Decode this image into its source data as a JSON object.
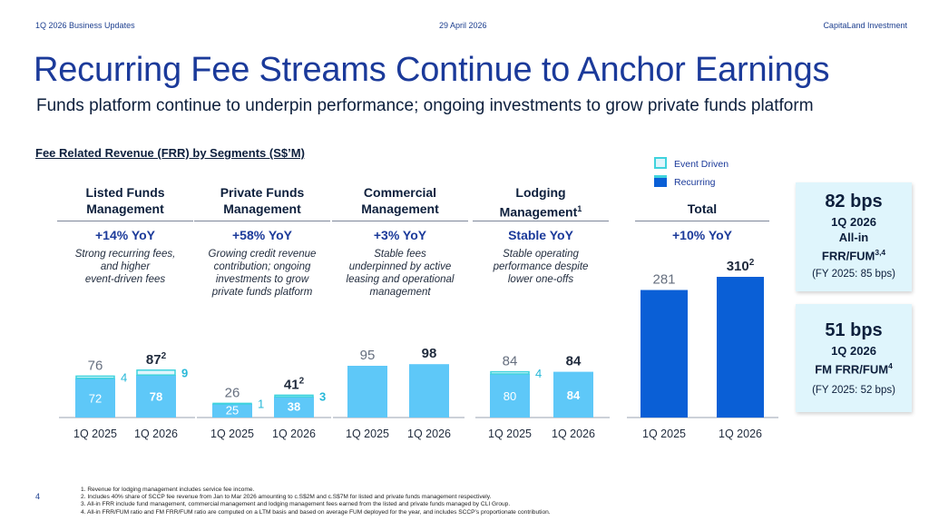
{
  "header": {
    "left": "1Q 2026 Business Updates",
    "center": "29 April 2026",
    "right": "CapitaLand Investment"
  },
  "title": "Recurring Fee Streams Continue to Anchor Earnings",
  "subtitle": "Funds platform continue to underpin performance; ongoing investments to grow private funds platform",
  "chart_title": "Fee Related Revenue (FRR) by Segments (S$’M)",
  "legend": {
    "event": "Event Driven",
    "recurring": "Recurring"
  },
  "segments": [
    {
      "name1": "Listed Funds",
      "name2": "Management",
      "sup": "",
      "yoy": "+14% YoY",
      "desc": [
        "Strong recurring fees,",
        "and higher",
        "event-driven fees"
      ]
    },
    {
      "name1": "Private Funds",
      "name2": "Management",
      "sup": "",
      "yoy": "+58% YoY",
      "desc": [
        "Growing credit revenue",
        "contribution; ongoing",
        "investments to grow",
        "private funds platform"
      ]
    },
    {
      "name1": "Commercial",
      "name2": "Management",
      "sup": "",
      "yoy": "+3% YoY",
      "desc": [
        "Stable fees",
        "underpinned by active",
        "leasing and operational",
        "management"
      ]
    },
    {
      "name1": "Lodging",
      "name2": "Management",
      "sup": "1",
      "yoy": "Stable YoY",
      "desc": [
        "Stable operating",
        "performance despite",
        "lower one-offs"
      ]
    },
    {
      "name1": "Total",
      "name2": "",
      "sup": "",
      "yoy": "+10% YoY",
      "desc": []
    }
  ],
  "chart_data": {
    "type": "bar",
    "stacked": true,
    "categories": [
      "1Q 2025",
      "1Q 2026"
    ],
    "groups": [
      {
        "segment": "Listed Funds Management",
        "recurring": [
          72,
          78
        ],
        "event": [
          4,
          9
        ],
        "totals": [
          "76",
          "87"
        ],
        "total_sup": [
          "",
          "2"
        ]
      },
      {
        "segment": "Private Funds Management",
        "recurring": [
          25,
          38
        ],
        "event": [
          1,
          3
        ],
        "totals": [
          "26",
          "41"
        ],
        "total_sup": [
          "",
          "2"
        ]
      },
      {
        "segment": "Commercial Management",
        "recurring": [
          95,
          98
        ],
        "event": [
          0,
          0
        ],
        "totals": [
          "95",
          "98"
        ],
        "total_sup": [
          "",
          ""
        ]
      },
      {
        "segment": "Lodging Management",
        "recurring": [
          80,
          84
        ],
        "event": [
          4,
          0
        ],
        "totals": [
          "84",
          "84"
        ],
        "total_sup": [
          "",
          ""
        ]
      },
      {
        "segment": "Total",
        "recurring": [
          281,
          310
        ],
        "event": [
          0,
          0
        ],
        "totals": [
          "281",
          "310"
        ],
        "total_sup": [
          "",
          "2"
        ]
      }
    ],
    "series": [
      {
        "name": "Recurring",
        "color": "#5ec8f8"
      },
      {
        "name": "Event Driven",
        "color": "#dff5fc"
      }
    ]
  },
  "colors": {
    "recurring": "#5ec8f8",
    "event_fill": "#dff5fc",
    "event_stroke": "#3fd3dd",
    "total": "#0a5fd6",
    "navy": "#1b3a9a"
  },
  "cards": [
    {
      "big": "82 bps",
      "line1": "1Q 2026",
      "line2": "All-in",
      "line3": "FRR/FUM",
      "sup": "3,4",
      "small": "(FY 2025: 85 bps)"
    },
    {
      "big": "51 bps",
      "line1": "1Q 2026",
      "line2": "FM FRR/FUM",
      "sup": "4",
      "small": "(FY 2025: 52 bps)"
    }
  ],
  "footnotes": [
    "1.  Revenue for lodging management includes service fee income.",
    "2.  Includes 40% share of SCCP fee revenue from Jan to Mar 2026 amounting to c.S$2M and c.S$7M for listed and private funds management respectively.",
    "3.  All-in FRR include fund management, commercial management and lodging management fees earned from the listed and private funds managed by CLI Group.",
    "4.  All-in FRR/FUM ratio and FM FRR/FUM ratio are computed on a LTM basis and based on average FUM deployed for the year, and includes SCCP’s proportionate contribution."
  ],
  "page_number": "4"
}
